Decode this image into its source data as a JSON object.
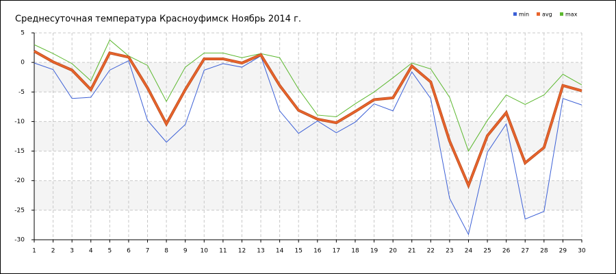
{
  "chart_data": {
    "type": "line",
    "title": "Среднесуточная температура Красноуфимск  Ноябрь 2014 г.",
    "x": [
      1,
      2,
      3,
      4,
      5,
      6,
      7,
      8,
      9,
      10,
      11,
      12,
      13,
      14,
      15,
      16,
      17,
      18,
      19,
      20,
      21,
      22,
      23,
      24,
      25,
      26,
      27,
      28,
      29,
      30
    ],
    "xlim": [
      1,
      30
    ],
    "xticks": [
      1,
      2,
      3,
      4,
      5,
      6,
      7,
      8,
      9,
      10,
      11,
      12,
      13,
      14,
      15,
      16,
      17,
      18,
      19,
      20,
      21,
      22,
      23,
      24,
      25,
      26,
      27,
      28,
      29,
      30
    ],
    "ylim": [
      -30,
      5
    ],
    "yticks": [
      5,
      0,
      -5,
      -10,
      -15,
      -20,
      -25,
      -30
    ],
    "grid": true,
    "legend": "top-right",
    "series": [
      {
        "name": "min",
        "color": "#3b5fd6",
        "values": [
          -0.1,
          -1.2,
          -6.1,
          -5.9,
          -1.3,
          0.3,
          -9.8,
          -13.5,
          -10.5,
          -1.3,
          -0.2,
          -0.8,
          1.1,
          -8.2,
          -12.0,
          -9.9,
          -11.9,
          -10.1,
          -7.0,
          -8.2,
          -1.6,
          -6.1,
          -23.0,
          -29.1,
          -15.2,
          -10.4,
          -26.5,
          -25.2,
          -6.1,
          -7.2
        ]
      },
      {
        "name": "avg",
        "color": "#e8642c",
        "values": [
          1.9,
          0.1,
          -1.3,
          -4.6,
          1.6,
          0.9,
          -4.3,
          -10.4,
          -4.6,
          0.6,
          0.6,
          -0.1,
          1.3,
          -3.9,
          -8.1,
          -9.6,
          -10.2,
          -8.3,
          -6.3,
          -6.0,
          -0.6,
          -3.3,
          -13.3,
          -20.8,
          -12.4,
          -8.5,
          -17.0,
          -14.4,
          -3.9,
          -4.8
        ]
      },
      {
        "name": "max",
        "color": "#5cb82f",
        "values": [
          3.0,
          1.5,
          -0.2,
          -3.1,
          3.8,
          1.1,
          -0.5,
          -6.6,
          -0.8,
          1.6,
          1.6,
          0.8,
          1.5,
          0.8,
          -4.5,
          -8.9,
          -9.2,
          -7.0,
          -5.0,
          -2.6,
          -0.1,
          -1.1,
          -5.9,
          -15.0,
          -9.8,
          -5.5,
          -7.1,
          -5.5,
          -2.0,
          -3.8
        ]
      }
    ]
  }
}
